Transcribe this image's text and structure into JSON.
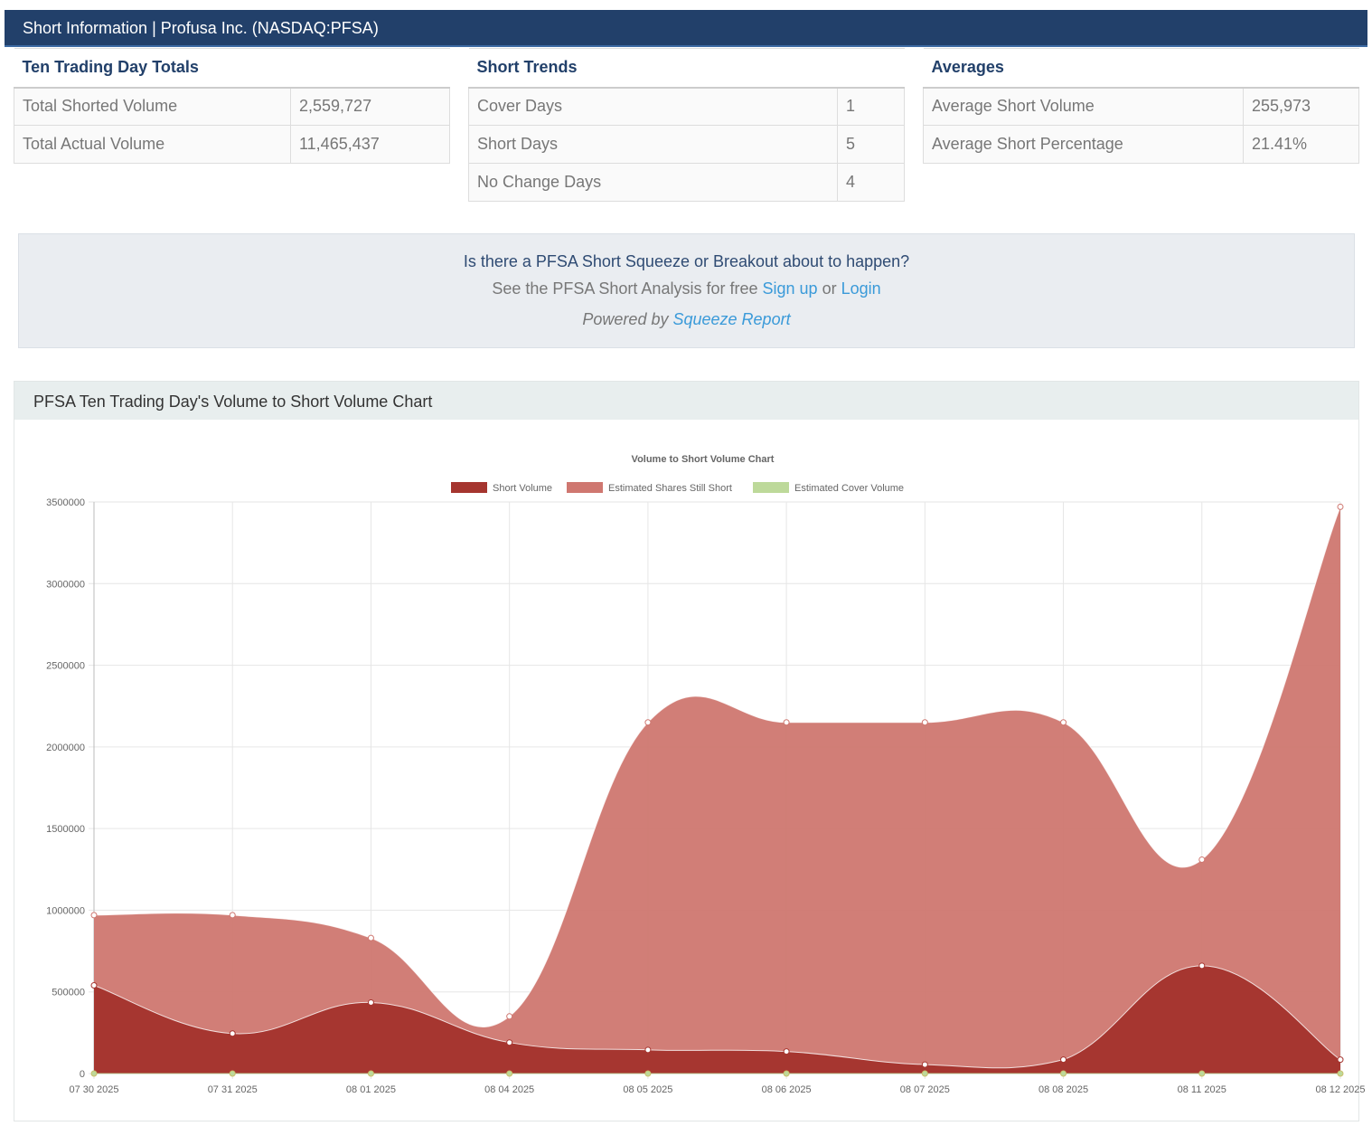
{
  "header": {
    "title": "Short Information | Profusa Inc. (NASDAQ:PFSA)"
  },
  "tables": [
    {
      "heading": "Ten Trading Day Totals",
      "rows": [
        {
          "label": "Total Shorted Volume",
          "value": "2,559,727"
        },
        {
          "label": "Total Actual Volume",
          "value": "11,465,437"
        }
      ]
    },
    {
      "heading": "Short Trends",
      "rows": [
        {
          "label": "Cover Days",
          "value": "1"
        },
        {
          "label": "Short Days",
          "value": "5"
        },
        {
          "label": "No Change Days",
          "value": "4"
        }
      ]
    },
    {
      "heading": "Averages",
      "rows": [
        {
          "label": "Average Short Volume",
          "value": "255,973"
        },
        {
          "label": "Average Short Percentage",
          "value": "21.41%"
        }
      ]
    }
  ],
  "promo": {
    "question": "Is there a PFSA Short Squeeze or Breakout about to happen?",
    "see_text": "See the PFSA Short Analysis for free",
    "signup": "Sign up",
    "or": "or",
    "login": "Login",
    "powered_by": "Powered by",
    "squeeze_report": "Squeeze Report"
  },
  "chart_panel": {
    "heading": "PFSA Ten Trading Day's Volume to Short Volume Chart"
  },
  "chart_data": {
    "type": "area",
    "title": "Volume to Short Volume Chart",
    "categories": [
      "07 30 2025",
      "07 31 2025",
      "08 01 2025",
      "08 04 2025",
      "08 05 2025",
      "08 06 2025",
      "08 07 2025",
      "08 08 2025",
      "08 11 2025",
      "08 12 2025"
    ],
    "ylim": [
      0,
      3500000
    ],
    "yticks": [
      "0",
      "500000",
      "1000000",
      "1500000",
      "2000000",
      "2500000",
      "3000000",
      "3500000"
    ],
    "grid": true,
    "legend_position": "top",
    "series": [
      {
        "name": "Short Volume",
        "color": "#a5352f",
        "values": [
          540000,
          245000,
          435000,
          190000,
          145000,
          135000,
          55000,
          85000,
          660000,
          85000
        ]
      },
      {
        "name": "Estimated Shares Still Short",
        "color": "#cf7770",
        "values": [
          970000,
          970000,
          830000,
          350000,
          2150000,
          2150000,
          2150000,
          2150000,
          1310000,
          3470000
        ]
      },
      {
        "name": "Estimated Cover Volume",
        "color": "#bdd99a",
        "values": [
          0,
          0,
          0,
          0,
          0,
          0,
          0,
          0,
          0,
          0
        ]
      }
    ]
  }
}
